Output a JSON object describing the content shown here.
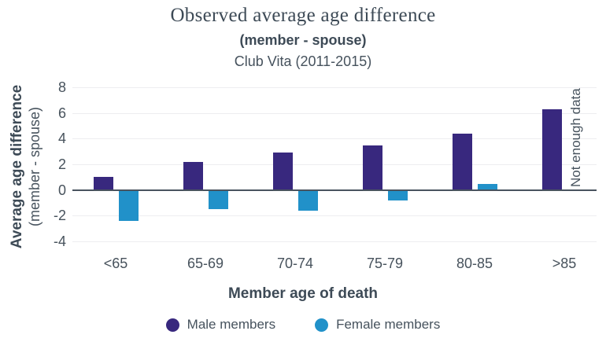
{
  "chart_data": {
    "type": "bar",
    "title": "Observed average age difference",
    "subtitle": "(member - spouse)",
    "period": "Club Vita (2011-2015)",
    "xlabel": "Member age of death",
    "ylabel_line1": "Average age difference",
    "ylabel_line2": "(member - spouse)",
    "annotation": "Not enough data",
    "categories": [
      "<65",
      "65-69",
      "70-74",
      "75-79",
      "80-85",
      ">85"
    ],
    "series": [
      {
        "name": "Male members",
        "color": "#38287e",
        "values": [
          1.0,
          2.2,
          2.9,
          3.5,
          4.4,
          6.3
        ]
      },
      {
        "name": "Female members",
        "color": "#2191c9",
        "values": [
          -2.4,
          -1.5,
          -1.6,
          -0.8,
          0.5,
          null
        ]
      }
    ],
    "yticks": [
      8,
      6,
      4,
      2,
      0,
      -2,
      -4
    ],
    "ylim": [
      -4,
      8
    ],
    "grid": "horizontal",
    "legend_position": "bottom",
    "colors": {
      "text": "#3d4a56",
      "axis_line": "#49545f",
      "gridline": "#ededf0",
      "male": "#38287e",
      "female": "#2191c9"
    }
  }
}
